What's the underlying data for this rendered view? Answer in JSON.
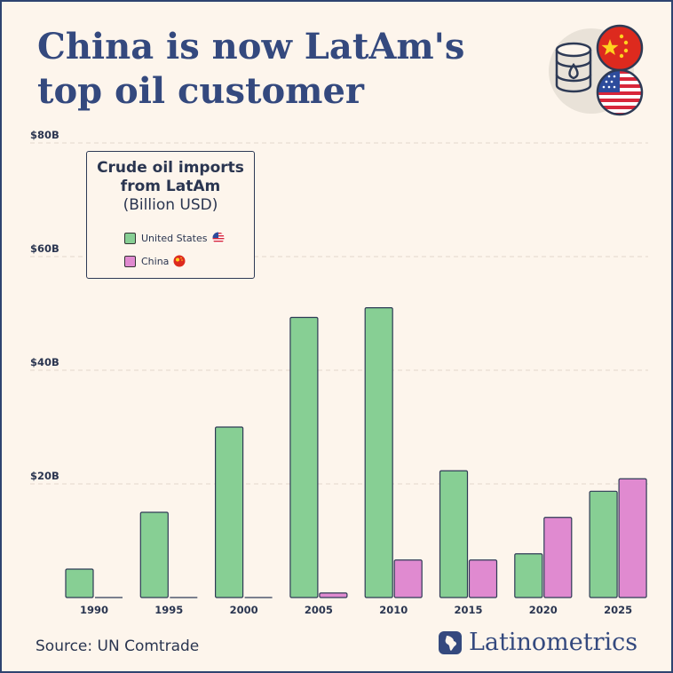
{
  "title": "China is now LatAm's top oil customer",
  "source": "Source: UN Comtrade",
  "brand": "Latinometrics",
  "icons": {
    "barrel": "oil-barrel-icon",
    "flag1": "china-flag-icon",
    "flag2": "us-flag-icon"
  },
  "colors": {
    "us": "#87cf94",
    "china": "#e08ad0",
    "text": "#2a3550",
    "title": "#34497e"
  },
  "chart_data": {
    "type": "bar",
    "title": "Crude oil imports from LatAm",
    "subtitle": "(Billion USD)",
    "categories": [
      "1990",
      "1995",
      "2000",
      "2005",
      "2010",
      "2015",
      "2020",
      "2025"
    ],
    "series": [
      {
        "name": "United States",
        "values": [
          5,
          15,
          30,
          49.3,
          51,
          22.3,
          7.7,
          18.7
        ]
      },
      {
        "name": "China",
        "values": [
          0,
          0,
          0,
          0.8,
          6.6,
          6.6,
          14.1,
          20.9
        ]
      }
    ],
    "y_ticks": [
      "$20B",
      "$40B",
      "$60B",
      "$80B"
    ],
    "ylim": [
      0,
      80
    ],
    "grid": true,
    "legend_position": "top-left"
  }
}
